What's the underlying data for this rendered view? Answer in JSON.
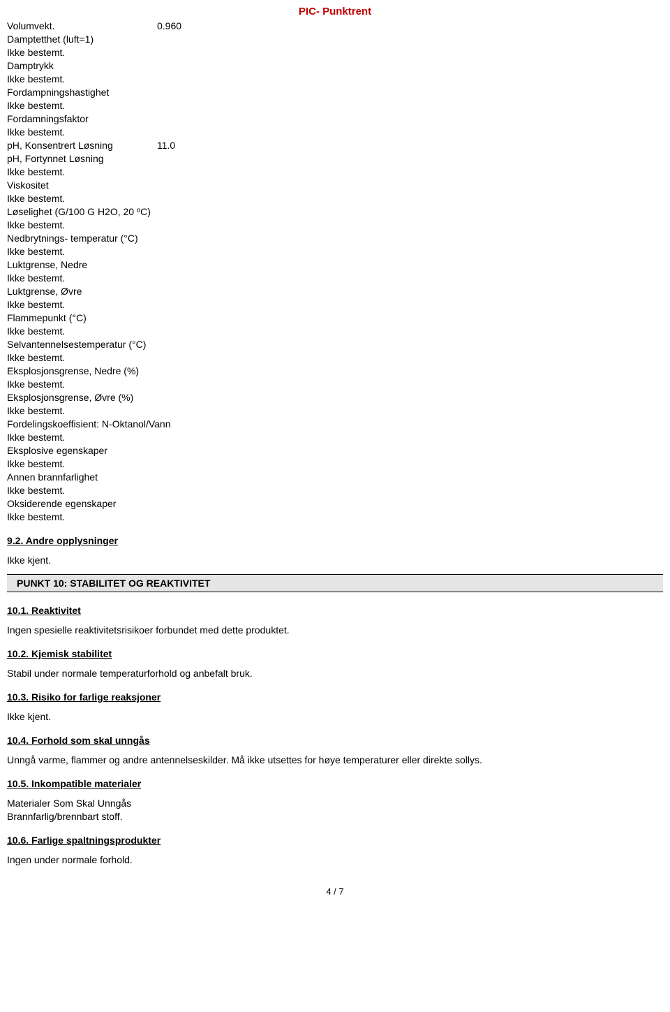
{
  "header": {
    "title": "PIC- Punktrent"
  },
  "properties": [
    {
      "label": "Volumvekt.",
      "value": "0.960",
      "then": null
    },
    {
      "label": "Damptetthet (luft=1)",
      "value": null,
      "then": "Ikke bestemt."
    },
    {
      "label": "Damptrykk",
      "value": null,
      "then": "Ikke bestemt."
    },
    {
      "label": "Fordampningshastighet",
      "value": null,
      "then": "Ikke bestemt."
    },
    {
      "label": "Fordamningsfaktor",
      "value": null,
      "then": "Ikke bestemt."
    },
    {
      "label": "pH, Konsentrert Løsning",
      "value": "11.0",
      "then": null
    },
    {
      "label": "pH, Fortynnet Løsning",
      "value": null,
      "then": "Ikke bestemt."
    },
    {
      "label": "Viskositet",
      "value": null,
      "then": "Ikke bestemt."
    },
    {
      "label": "Løselighet (G/100 G H2O, 20 ºC)",
      "value": null,
      "then": "Ikke bestemt."
    },
    {
      "label": "Nedbrytnings- temperatur (°C)",
      "value": null,
      "then": "Ikke bestemt."
    },
    {
      "label": "Luktgrense, Nedre",
      "value": null,
      "then": "Ikke bestemt."
    },
    {
      "label": "Luktgrense, Øvre",
      "value": null,
      "then": "Ikke bestemt."
    },
    {
      "label": "Flammepunkt (°C)",
      "value": null,
      "then": "Ikke bestemt."
    },
    {
      "label": "Selvantennelsestemperatur (°C)",
      "value": null,
      "then": "Ikke bestemt."
    },
    {
      "label": "Eksplosjonsgrense, Nedre (%)",
      "value": null,
      "then": "Ikke bestemt."
    },
    {
      "label": "Eksplosjonsgrense, Øvre (%)",
      "value": null,
      "then": "Ikke bestemt."
    },
    {
      "label": "Fordelingskoeffisient: N-Oktanol/Vann",
      "value": null,
      "then": "Ikke bestemt."
    },
    {
      "label": "Eksplosive egenskaper",
      "value": null,
      "then": "Ikke bestemt."
    },
    {
      "label": "Annen brannfarlighet",
      "value": null,
      "then": "Ikke bestemt."
    },
    {
      "label": "Oksiderende egenskaper",
      "value": null,
      "then": "Ikke bestemt."
    }
  ],
  "section92": {
    "heading": "9.2. Andre opplysninger",
    "text": "Ikke kjent."
  },
  "section10": {
    "title": "PUNKT 10: STABILITET OG REAKTIVITET",
    "sub1": {
      "heading": "10.1. Reaktivitet",
      "text": "Ingen spesielle reaktivitetsrisikoer forbundet med dette produktet."
    },
    "sub2": {
      "heading": "10.2. Kjemisk stabilitet",
      "text": "Stabil under normale temperaturforhold og anbefalt bruk."
    },
    "sub3": {
      "heading": "10.3. Risiko for farlige reaksjoner",
      "text": "Ikke kjent."
    },
    "sub4": {
      "heading": "10.4. Forhold som skal unngås",
      "text": "Unngå varme,  flammer og andre antennelseskilder. Må ikke utsettes for høye temperaturer eller direkte sollys."
    },
    "sub5": {
      "heading": "10.5. Inkompatible materialer",
      "line1": "Materialer Som Skal Unngås",
      "line2": "Brannfarlig/brennbart stoff."
    },
    "sub6": {
      "heading": "10.6. Farlige spaltningsprodukter",
      "text": "Ingen under normale forhold."
    }
  },
  "footer": {
    "page": "4 /  7"
  }
}
